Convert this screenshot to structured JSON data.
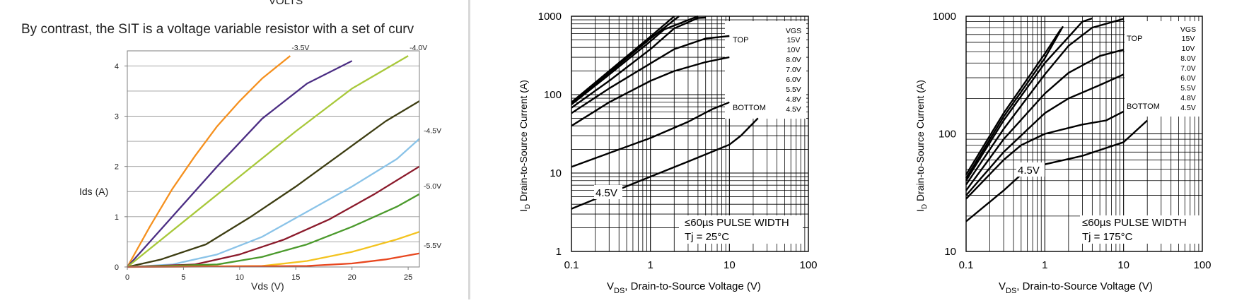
{
  "page": {
    "heading_partial": "VOLTS",
    "intro_text": "By contrast, the SIT is a voltage variable resistor with a set of curv"
  },
  "chart_data": [
    {
      "type": "line",
      "title": "",
      "xlabel": "Vds (V)",
      "ylabel": "Ids (A)",
      "xlim": [
        0,
        26
      ],
      "ylim": [
        0,
        4.3
      ],
      "x_ticks": [
        "0",
        "5",
        "10",
        "15",
        "20",
        "25"
      ],
      "y_ticks": [
        "0",
        "1",
        "2",
        "3",
        "4"
      ],
      "grid": "horizontal",
      "series": [
        {
          "name": "-3.5V",
          "color": "#f5901e",
          "points": [
            [
              0,
              0
            ],
            [
              2,
              0.8
            ],
            [
              4,
              1.55
            ],
            [
              6,
              2.2
            ],
            [
              8,
              2.8
            ],
            [
              10,
              3.3
            ],
            [
              12,
              3.75
            ],
            [
              14.5,
              4.2
            ]
          ]
        },
        {
          "name": "",
          "color": "#4b2d83",
          "points": [
            [
              0,
              0
            ],
            [
              4,
              1.0
            ],
            [
              8,
              2.0
            ],
            [
              12,
              2.95
            ],
            [
              16,
              3.65
            ],
            [
              20,
              4.1
            ]
          ]
        },
        {
          "name": "-4.0V",
          "color": "#a8c83a",
          "points": [
            [
              0,
              0
            ],
            [
              5,
              0.9
            ],
            [
              10,
              1.8
            ],
            [
              15,
              2.7
            ],
            [
              20,
              3.55
            ],
            [
              25,
              4.2
            ]
          ]
        },
        {
          "name": "",
          "color": "#3d3d12",
          "points": [
            [
              0,
              0
            ],
            [
              3,
              0.15
            ],
            [
              7,
              0.45
            ],
            [
              11,
              1.0
            ],
            [
              15,
              1.6
            ],
            [
              19,
              2.25
            ],
            [
              23,
              2.9
            ],
            [
              26,
              3.3
            ]
          ]
        },
        {
          "name": "-4.5V",
          "color": "#8ac3e8",
          "points": [
            [
              0,
              0
            ],
            [
              4,
              0.05
            ],
            [
              8,
              0.25
            ],
            [
              12,
              0.6
            ],
            [
              16,
              1.1
            ],
            [
              20,
              1.6
            ],
            [
              24,
              2.15
            ],
            [
              26,
              2.55
            ]
          ]
        },
        {
          "name": "",
          "color": "#8b1a2b",
          "points": [
            [
              0,
              0
            ],
            [
              6,
              0.05
            ],
            [
              10,
              0.25
            ],
            [
              14,
              0.55
            ],
            [
              18,
              0.95
            ],
            [
              22,
              1.45
            ],
            [
              26,
              2.0
            ]
          ]
        },
        {
          "name": "-5.0V",
          "color": "#4b9a2c",
          "points": [
            [
              0,
              0
            ],
            [
              8,
              0.05
            ],
            [
              12,
              0.2
            ],
            [
              16,
              0.45
            ],
            [
              20,
              0.8
            ],
            [
              24,
              1.2
            ],
            [
              26,
              1.45
            ]
          ]
        },
        {
          "name": "",
          "color": "#f3c31f",
          "points": [
            [
              0,
              0
            ],
            [
              12,
              0.02
            ],
            [
              16,
              0.12
            ],
            [
              20,
              0.3
            ],
            [
              24,
              0.55
            ],
            [
              26,
              0.7
            ]
          ]
        },
        {
          "name": "-5.5V",
          "color": "#e8471f",
          "points": [
            [
              0,
              0
            ],
            [
              16,
              0.02
            ],
            [
              20,
              0.07
            ],
            [
              23,
              0.15
            ],
            [
              26,
              0.27
            ]
          ]
        }
      ]
    },
    {
      "type": "line",
      "x_scale": "log",
      "y_scale": "log",
      "xlabel_main": "V",
      "xlabel_sub": "DS",
      "xlabel_rest": ", Drain-to-Source Voltage (V)",
      "ylabel_main": "I",
      "ylabel_sub": "D",
      "ylabel_rest": " Drain-to-Source Current (A)",
      "xlim": [
        0.1,
        100
      ],
      "ylim": [
        1,
        1000
      ],
      "x_ticks": [
        "0.1",
        "1",
        "10",
        "100"
      ],
      "y_ticks": [
        "1",
        "10",
        "100",
        "1000"
      ],
      "grid": "both",
      "legend": {
        "header": "VGS",
        "top_label": "TOP",
        "bottom_label": "BOTTOM",
        "entries": [
          "15V",
          "10V",
          "8.0V",
          "7.0V",
          "6.0V",
          "5.5V",
          "4.8V",
          "4.5V"
        ]
      },
      "note_1": "≤60µs PULSE WIDTH",
      "note_2": "Tj = 25°C",
      "curve_label": "4.5V",
      "series": [
        {
          "name": "15V",
          "points": [
            [
              0.1,
              80
            ],
            [
              0.3,
              200
            ],
            [
              1,
              550
            ],
            [
              2,
              1000
            ]
          ]
        },
        {
          "name": "10V",
          "points": [
            [
              0.1,
              78
            ],
            [
              0.3,
              190
            ],
            [
              1,
              520
            ],
            [
              2.3,
              1000
            ]
          ]
        },
        {
          "name": "8.0V",
          "points": [
            [
              0.1,
              75
            ],
            [
              0.3,
              180
            ],
            [
              1,
              480
            ],
            [
              1.5,
              680
            ],
            [
              4,
              1000
            ]
          ]
        },
        {
          "name": "7.0V",
          "points": [
            [
              0.1,
              68
            ],
            [
              0.3,
              150
            ],
            [
              1,
              380
            ],
            [
              2,
              700
            ],
            [
              4,
              950
            ],
            [
              5,
              960
            ]
          ]
        },
        {
          "name": "6.0V",
          "points": [
            [
              0.1,
              58
            ],
            [
              0.3,
              120
            ],
            [
              1,
              250
            ],
            [
              2,
              380
            ],
            [
              5,
              520
            ],
            [
              10,
              560
            ]
          ]
        },
        {
          "name": "5.5V",
          "points": [
            [
              0.1,
              40
            ],
            [
              0.3,
              80
            ],
            [
              1,
              150
            ],
            [
              2,
              200
            ],
            [
              5,
              260
            ],
            [
              10,
              300
            ]
          ]
        },
        {
          "name": "4.8V",
          "points": [
            [
              0.1,
              12
            ],
            [
              0.3,
              18
            ],
            [
              1,
              28
            ],
            [
              3,
              45
            ],
            [
              6,
              65
            ],
            [
              10,
              80
            ]
          ]
        },
        {
          "name": "4.5V",
          "points": [
            [
              0.1,
              3.5
            ],
            [
              0.3,
              5.5
            ],
            [
              1,
              9
            ],
            [
              3,
              14
            ],
            [
              10,
              23
            ],
            [
              14,
              30
            ],
            [
              23,
              50
            ]
          ]
        }
      ]
    },
    {
      "type": "line",
      "x_scale": "log",
      "y_scale": "log",
      "xlabel_main": "V",
      "xlabel_sub": "DS",
      "xlabel_rest": ", Drain-to-Source Voltage (V)",
      "ylabel_main": "I",
      "ylabel_sub": "D",
      "ylabel_rest": " Drain-to-Source Current (A)",
      "xlim": [
        0.1,
        100
      ],
      "ylim": [
        10,
        1000
      ],
      "x_ticks": [
        "0.1",
        "1",
        "10",
        "100"
      ],
      "y_ticks": [
        "10",
        "100",
        "1000"
      ],
      "grid": "both",
      "legend": {
        "header": "VGS",
        "top_label": "TOP",
        "bottom_label": "BOTTOM",
        "entries": [
          "15V",
          "10V",
          "8.0V",
          "7.0V",
          "6.0V",
          "5.5V",
          "4.8V",
          "4.5V"
        ]
      },
      "note_1": "≤60µs PULSE WIDTH",
      "note_2": "Tj = 175°C",
      "curve_label": "4.5V",
      "series": [
        {
          "name": "15V",
          "points": [
            [
              0.1,
              45
            ],
            [
              0.3,
              150
            ],
            [
              1,
              480
            ],
            [
              1.6,
              780
            ]
          ]
        },
        {
          "name": "10V",
          "points": [
            [
              0.1,
              42
            ],
            [
              0.3,
              140
            ],
            [
              1,
              440
            ],
            [
              1.7,
              820
            ]
          ]
        },
        {
          "name": "8.0V",
          "points": [
            [
              0.1,
              40
            ],
            [
              0.3,
              130
            ],
            [
              1,
              400
            ],
            [
              3,
              900
            ],
            [
              4,
              960
            ]
          ]
        },
        {
          "name": "7.0V",
          "points": [
            [
              0.1,
              37
            ],
            [
              0.3,
              110
            ],
            [
              1,
              320
            ],
            [
              2,
              560
            ],
            [
              4,
              800
            ],
            [
              10,
              950
            ]
          ]
        },
        {
          "name": "6.0V",
          "points": [
            [
              0.1,
              33
            ],
            [
              0.3,
              90
            ],
            [
              1,
              220
            ],
            [
              2,
              330
            ],
            [
              5,
              460
            ],
            [
              10,
              520
            ]
          ]
        },
        {
          "name": "5.5V",
          "points": [
            [
              0.1,
              30
            ],
            [
              0.3,
              70
            ],
            [
              1,
              150
            ],
            [
              2,
              200
            ],
            [
              5,
              260
            ],
            [
              10,
              320
            ]
          ]
        },
        {
          "name": "4.8V",
          "points": [
            [
              0.1,
              28
            ],
            [
              0.3,
              60
            ],
            [
              0.5,
              80
            ],
            [
              1,
              100
            ],
            [
              3,
              120
            ],
            [
              6,
              130
            ],
            [
              10,
              155
            ]
          ]
        },
        {
          "name": "4.5V",
          "points": [
            [
              0.1,
              18
            ],
            [
              0.3,
              33
            ],
            [
              0.5,
              45
            ],
            [
              1,
              55
            ],
            [
              3,
              65
            ],
            [
              10,
              85
            ],
            [
              20,
              130
            ]
          ]
        }
      ]
    }
  ]
}
